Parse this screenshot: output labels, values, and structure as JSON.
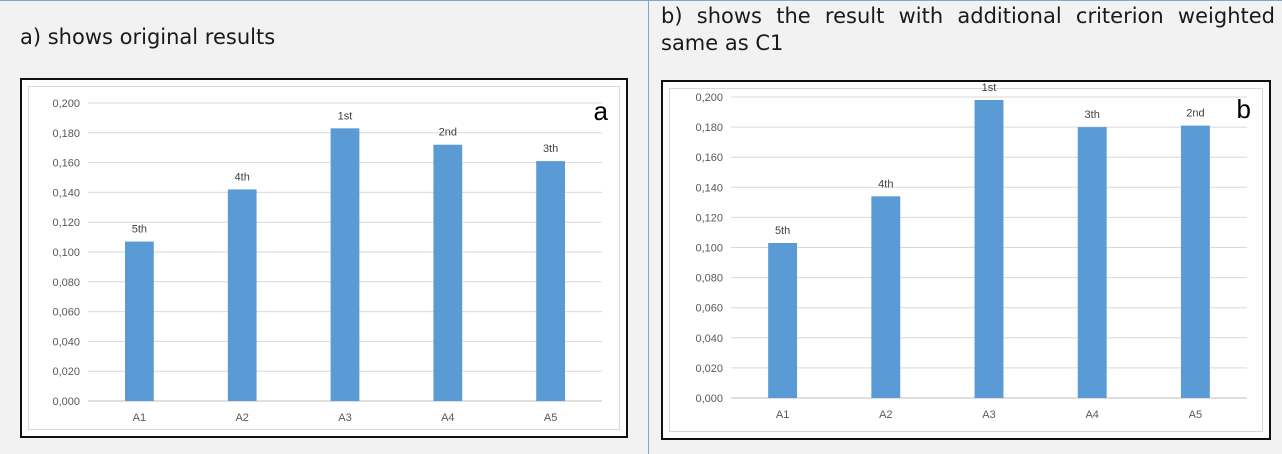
{
  "panels": {
    "left": {
      "caption": "a) shows original results",
      "letter": "a"
    },
    "right": {
      "caption": "b) shows the result with additional criterion weighted same as C1",
      "letter": "b"
    }
  },
  "chart_data": [
    {
      "type": "bar",
      "categories": [
        "A1",
        "A2",
        "A3",
        "A4",
        "A5"
      ],
      "values": [
        0.107,
        0.142,
        0.183,
        0.172,
        0.161
      ],
      "data_labels": [
        "5th",
        "4th",
        "1st",
        "2nd",
        "3th"
      ],
      "ylim": [
        0,
        0.2
      ],
      "yticks": [
        "0,000",
        "0,020",
        "0,040",
        "0,060",
        "0,080",
        "0,100",
        "0,120",
        "0,140",
        "0,160",
        "0,180",
        "0,200"
      ],
      "grid": true,
      "bar_color": "#5b9bd5"
    },
    {
      "type": "bar",
      "categories": [
        "A1",
        "A2",
        "A3",
        "A4",
        "A5"
      ],
      "values": [
        0.103,
        0.134,
        0.198,
        0.18,
        0.181
      ],
      "data_labels": [
        "5th",
        "4th",
        "1st",
        "3th",
        "2nd"
      ],
      "ylim": [
        0,
        0.2
      ],
      "yticks": [
        "0,000",
        "0,020",
        "0,040",
        "0,060",
        "0,080",
        "0,100",
        "0,120",
        "0,140",
        "0,160",
        "0,180",
        "0,200"
      ],
      "grid": true,
      "bar_color": "#5b9bd5"
    }
  ]
}
